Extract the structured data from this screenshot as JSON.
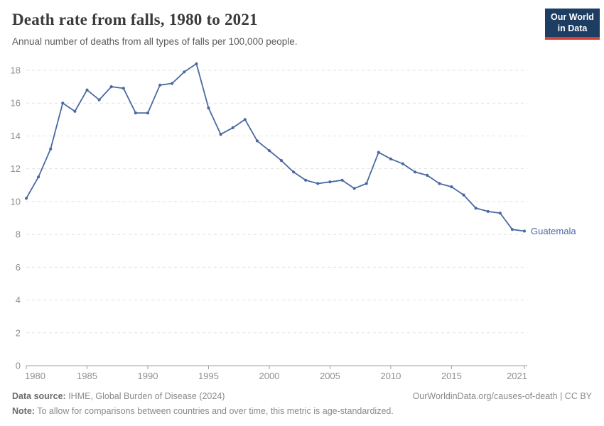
{
  "header": {
    "title": "Death rate from falls, 1980 to 2021",
    "subtitle": "Annual number of deaths from all types of falls per 100,000 people."
  },
  "logo": {
    "line1": "Our World",
    "line2": "in Data",
    "background_color": "#1d3d63",
    "bar_color": "#dc3f34"
  },
  "chart_data": {
    "type": "line",
    "title": "Death rate from falls, 1980 to 2021",
    "subtitle": "Annual number of deaths from all types of falls per 100,000 people.",
    "xlabel": "",
    "ylabel": "",
    "xlim": [
      1980,
      2021
    ],
    "ylim": [
      0,
      18
    ],
    "ytick_step": 2,
    "grid": true,
    "legend_position": "end-of-line-label",
    "xticks": [
      1980,
      1985,
      1990,
      1995,
      2000,
      2005,
      2010,
      2015,
      2021
    ],
    "x": [
      1980,
      1981,
      1982,
      1983,
      1984,
      1985,
      1986,
      1987,
      1988,
      1989,
      1990,
      1991,
      1992,
      1993,
      1994,
      1995,
      1996,
      1997,
      1998,
      1999,
      2000,
      2001,
      2002,
      2003,
      2004,
      2005,
      2006,
      2007,
      2008,
      2009,
      2010,
      2011,
      2012,
      2013,
      2014,
      2015,
      2016,
      2017,
      2018,
      2019,
      2020,
      2021
    ],
    "series": [
      {
        "name": "Guatemala",
        "color": "#4a69a2",
        "values": [
          10.2,
          11.5,
          13.2,
          16.0,
          15.5,
          16.8,
          16.2,
          17.0,
          16.9,
          15.4,
          15.4,
          17.1,
          17.2,
          17.9,
          18.4,
          15.7,
          14.1,
          14.5,
          15.0,
          13.7,
          13.1,
          12.5,
          11.8,
          11.3,
          11.1,
          11.2,
          11.3,
          10.8,
          11.1,
          13.0,
          12.6,
          12.3,
          11.8,
          11.6,
          11.1,
          10.9,
          10.4,
          9.6,
          9.4,
          9.3,
          8.3,
          8.2
        ]
      }
    ]
  },
  "chart_style": {
    "grid_color": "#e1e1e1",
    "axis_color": "#9e9e9e",
    "tick_label_color": "#8f8f8f"
  },
  "footer": {
    "source_label": "Data source:",
    "source_text": " IHME, Global Burden of Disease (2024)",
    "attribution": "OurWorldinData.org/causes-of-death | CC BY",
    "note_label": "Note:",
    "note_text": " To allow for comparisons between countries and over time, this metric is age-standardized."
  }
}
